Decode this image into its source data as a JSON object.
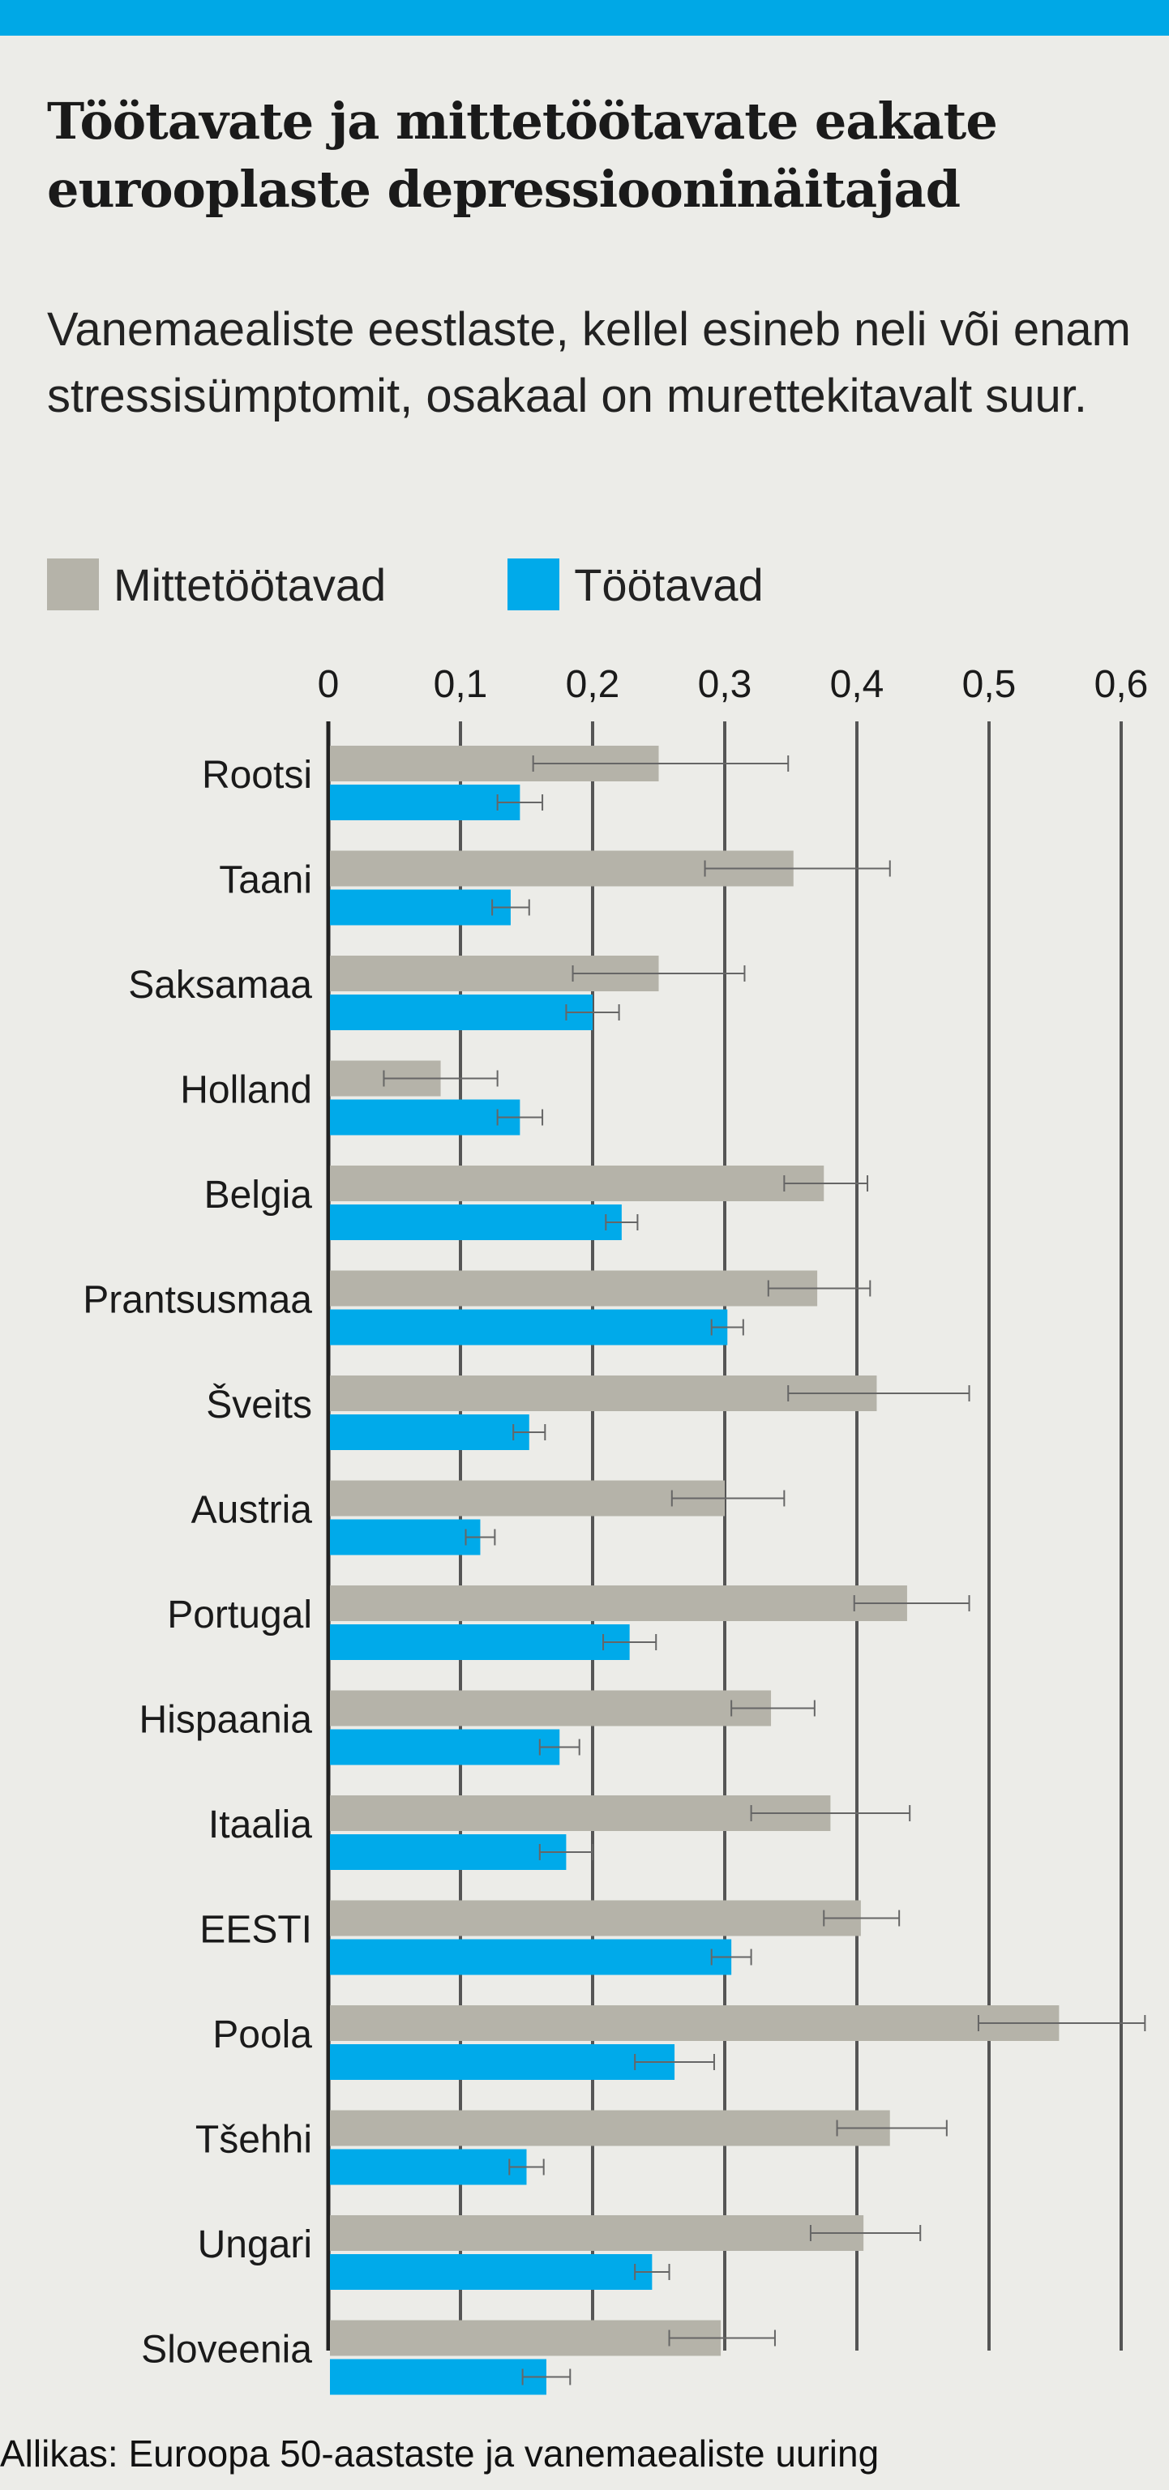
{
  "header": {
    "title": "Töötavate ja mittetöötavate eakate eurooplaste depressiooninäitajad",
    "subtitle": "Vanemaealiste eestlaste, kellel esineb neli või enam stressisümptomit, osakaal on murettekitavalt suur."
  },
  "legend": [
    {
      "label": "Mittetöötavad",
      "color": "#b5b3a9"
    },
    {
      "label": "Töötavad",
      "color": "#00aaea"
    }
  ],
  "footer": {
    "source": "Allikas: Euroopa 50-aastaste ja vanemaealiste uuring"
  },
  "chart_data": {
    "type": "bar",
    "orientation": "horizontal",
    "xlim": [
      0,
      0.6
    ],
    "ticks": [
      "0",
      "0,1",
      "0,2",
      "0,3",
      "0,4",
      "0,5",
      "0,6"
    ],
    "tick_values": [
      0,
      0.1,
      0.2,
      0.3,
      0.4,
      0.5,
      0.6
    ],
    "grid": true,
    "axis_position": "top",
    "categories": [
      "Rootsi",
      "Taani",
      "Saksamaa",
      "Holland",
      "Belgia",
      "Prantsusmaa",
      "Šveits",
      "Austria",
      "Portugal",
      "Hispaania",
      "Itaalia",
      "EESTI",
      "Poola",
      "Tšehhi",
      "Ungari",
      "Sloveenia"
    ],
    "series": [
      {
        "name": "Mittetöötavad",
        "color": "#b5b3a9",
        "values": [
          0.25,
          0.352,
          0.25,
          0.085,
          0.375,
          0.37,
          0.415,
          0.3,
          0.438,
          0.335,
          0.38,
          0.403,
          0.553,
          0.425,
          0.405,
          0.297
        ],
        "err_low": [
          0.155,
          0.285,
          0.185,
          0.042,
          0.345,
          0.333,
          0.348,
          0.26,
          0.398,
          0.305,
          0.32,
          0.375,
          0.492,
          0.385,
          0.365,
          0.258
        ],
        "err_high": [
          0.348,
          0.425,
          0.315,
          0.128,
          0.408,
          0.41,
          0.485,
          0.345,
          0.485,
          0.368,
          0.44,
          0.432,
          0.618,
          0.468,
          0.448,
          0.338
        ]
      },
      {
        "name": "Töötavad",
        "color": "#00aaea",
        "values": [
          0.145,
          0.138,
          0.2,
          0.145,
          0.222,
          0.302,
          0.152,
          0.115,
          0.228,
          0.175,
          0.18,
          0.305,
          0.262,
          0.15,
          0.245,
          0.165
        ],
        "err_low": [
          0.128,
          0.124,
          0.18,
          0.128,
          0.21,
          0.29,
          0.14,
          0.104,
          0.208,
          0.16,
          0.16,
          0.29,
          0.232,
          0.137,
          0.232,
          0.147
        ],
        "err_high": [
          0.162,
          0.152,
          0.22,
          0.162,
          0.234,
          0.314,
          0.164,
          0.126,
          0.248,
          0.19,
          0.2,
          0.32,
          0.292,
          0.163,
          0.258,
          0.183
        ]
      }
    ]
  }
}
